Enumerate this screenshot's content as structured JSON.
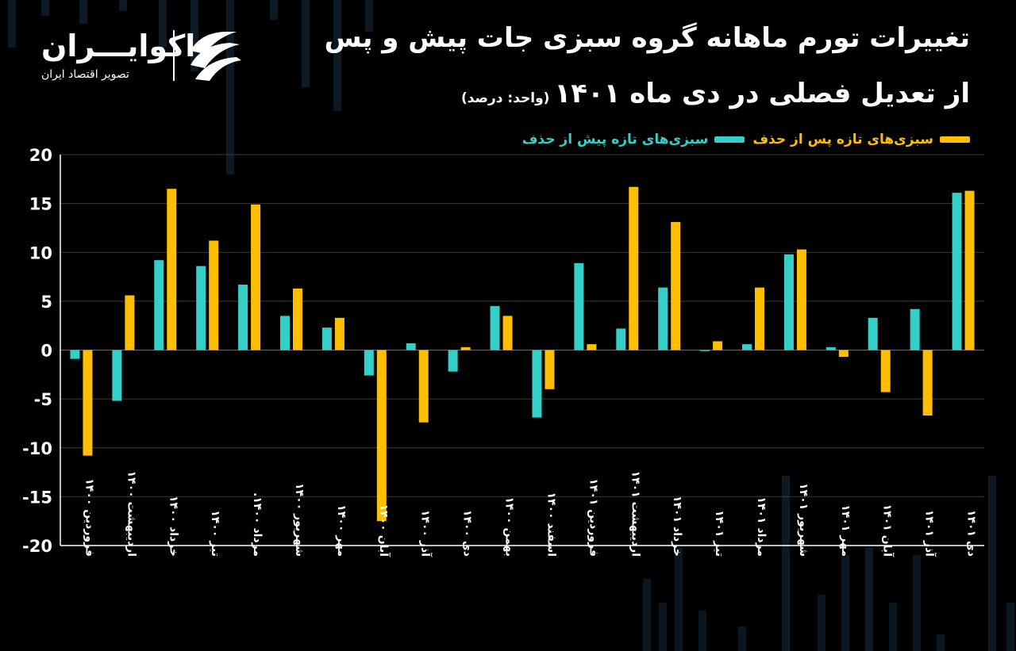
{
  "title": {
    "line1": "تغییرات تورم ماهانه گروه  سبزی جات پیش و پس",
    "line2": "از تعدیل فصلی در دی ماه ۱۴۰۱",
    "unit": "(واحد: درصد)"
  },
  "logo": {
    "name": "اکوایـــران",
    "tagline": "تصویر اقتصاد ایران",
    "icon": "ecoiran-logo-mark"
  },
  "colors": {
    "background": "#000000",
    "teal": "#35cfc9",
    "orange": "#ffbf00",
    "grid": "#3a3a3a",
    "axis": "#ffffff"
  },
  "chart_data": {
    "type": "bar",
    "ylim": [
      -20,
      20
    ],
    "yticks": [
      "20",
      "15",
      "10",
      "5",
      "0",
      "-5",
      "-10",
      "-15",
      "-20"
    ],
    "grid": true,
    "legend_position": "top-right",
    "categories": [
      "فروردین ۱۴۰۰",
      "اردیبهشت ۱۴۰۰",
      "خرداد ۱۴۰۰",
      "تیر ۱۴۰۰",
      "مرداد ۱۴۰۰.",
      "شهریور ۱۴۰۰",
      "مهر ۱۴۰۰",
      "آبان ۱۴۰۰",
      "آذر ۱۴۰۰",
      "دی ۱۴۰۰",
      "بهمن ۱۴۰۰",
      "اسفند ۱۴۰۰",
      "فروردین ۱۴۰۱",
      "اردیبهشت ۱۴۰۱",
      "خرداد ۱۴۰۱",
      "تیر ۱۴۰۱",
      "مرداد ۱۴۰۱",
      "شهریور ۱۴۰۱",
      "مهر ۱۴۰۱",
      "آبان ۱۴۰۱",
      "آذر ۱۴۰۱",
      "دی ۱۴۰۱"
    ],
    "series": [
      {
        "name": "سبزی‌های تازه پیش از حذف",
        "color": "#35cfc9",
        "values": [
          -0.9,
          -5.2,
          9.2,
          8.6,
          6.7,
          3.5,
          2.3,
          -2.6,
          0.7,
          -2.2,
          4.5,
          -6.9,
          8.9,
          2.2,
          6.4,
          -0.1,
          0.6,
          9.8,
          0.3,
          3.3,
          4.2,
          16.1
        ]
      },
      {
        "name": "سبزی‌های تازه پس از حذف",
        "color": "#ffbf00",
        "values": [
          -10.8,
          5.6,
          16.5,
          11.2,
          14.9,
          6.3,
          3.3,
          -17.5,
          -7.4,
          0.3,
          3.5,
          -4.0,
          0.6,
          16.7,
          13.1,
          0.9,
          6.4,
          10.3,
          -0.7,
          -4.3,
          -6.7,
          16.3
        ]
      }
    ]
  }
}
